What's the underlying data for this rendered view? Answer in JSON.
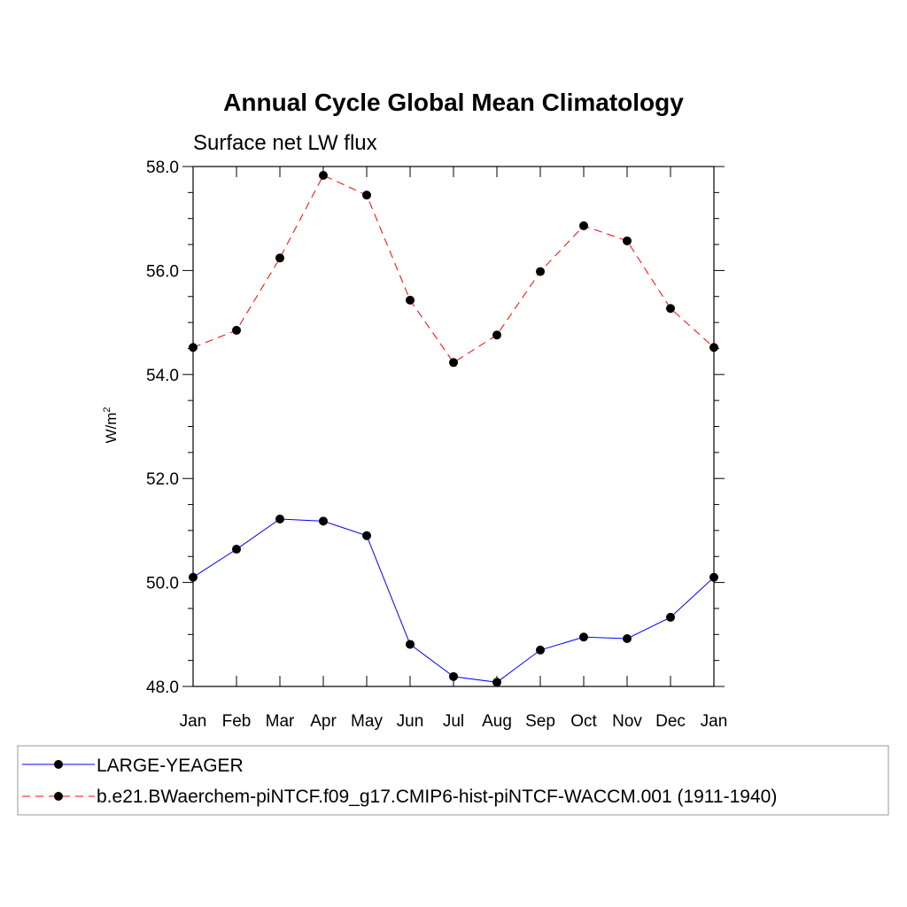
{
  "chart_data": {
    "type": "line",
    "title": "Annual Cycle Global Mean Climatology",
    "subtitle": "Surface net LW flux",
    "ylabel": "W/m",
    "ylabel_sup": "2",
    "xlabel": "",
    "categories": [
      "Jan",
      "Feb",
      "Mar",
      "Apr",
      "May",
      "Jun",
      "Jul",
      "Aug",
      "Sep",
      "Oct",
      "Nov",
      "Dec",
      "Jan"
    ],
    "ylim": [
      48.0,
      58.0
    ],
    "yticks": [
      "48.0",
      "50.0",
      "52.0",
      "54.0",
      "56.0",
      "58.0"
    ],
    "ytick_values": [
      48,
      50,
      52,
      54,
      56,
      58
    ],
    "grid": false,
    "legend_position": "bottom",
    "series": [
      {
        "name": "LARGE-YEAGER",
        "color": "#0000ff",
        "line_style": "solid",
        "values": [
          50.1,
          50.64,
          51.22,
          51.18,
          50.9,
          48.81,
          48.19,
          48.08,
          48.7,
          48.95,
          48.92,
          49.33,
          50.1
        ]
      },
      {
        "name": "b.e21.BWaerchem-piNTCF.f09_g17.CMIP6-hist-piNTCF-WACCM.001 (1911-1940)",
        "color": "#ff0000",
        "line_style": "dashed",
        "values": [
          54.52,
          54.85,
          56.24,
          57.83,
          57.45,
          55.43,
          54.23,
          54.76,
          55.98,
          56.86,
          56.57,
          55.27,
          54.52
        ]
      }
    ]
  }
}
